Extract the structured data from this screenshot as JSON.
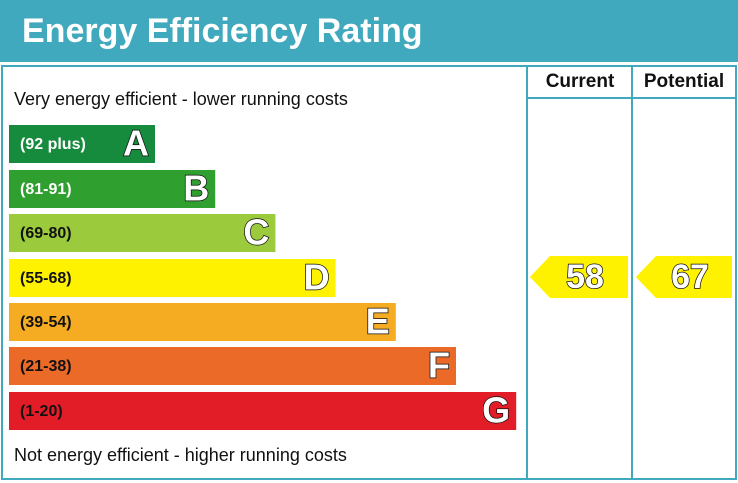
{
  "title": "Energy Efficiency Rating",
  "top_label": "Very energy efficient - lower running costs",
  "bottom_label": "Not energy efficient - higher running costs",
  "columns": [
    "Current",
    "Potential"
  ],
  "bands": [
    {
      "range": "(92 plus)",
      "letter": "A",
      "color": "#168a3d",
      "text_color": "#ffffff"
    },
    {
      "range": "(81-91)",
      "letter": "B",
      "color": "#2fa02f",
      "text_color": "#ffffff"
    },
    {
      "range": "(69-80)",
      "letter": "C",
      "color": "#9bcb3c",
      "text_color": "#111111"
    },
    {
      "range": "(55-68)",
      "letter": "D",
      "color": "#fff200",
      "text_color": "#111111"
    },
    {
      "range": "(39-54)",
      "letter": "E",
      "color": "#f5ab22",
      "text_color": "#111111"
    },
    {
      "range": "(21-38)",
      "letter": "F",
      "color": "#ec6a27",
      "text_color": "#111111"
    },
    {
      "range": "(1-20)",
      "letter": "G",
      "color": "#e21d28",
      "text_color": "#111111"
    }
  ],
  "current": {
    "value": 58,
    "color": "#fff200"
  },
  "potential": {
    "value": 67,
    "color": "#fff200"
  }
}
